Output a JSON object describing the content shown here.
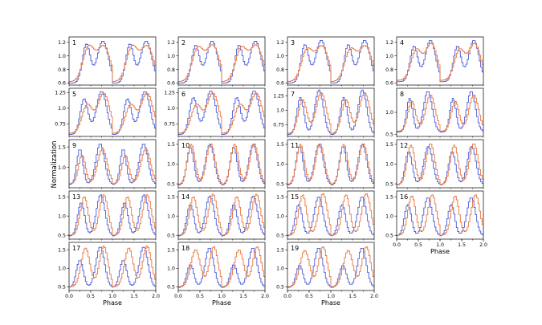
{
  "figure": {
    "ylabel": "Normalization",
    "xlabel": "Phase",
    "colors": {
      "series_a": "#4a5cd8",
      "series_b": "#e8733a",
      "axis": "#000000"
    }
  },
  "chart_data": [
    {
      "type": "line",
      "panel": "1",
      "xlim": [
        0,
        2
      ],
      "ylim": [
        0.57,
        1.28
      ],
      "yticks": [
        0.6,
        0.8,
        1.0,
        1.2
      ],
      "xticks": [],
      "series": [
        {
          "color": "#4a5cd8",
          "peaks": [
            [
              0.4,
              1.17,
              0.09
            ],
            [
              0.78,
              1.22,
              0.13
            ]
          ],
          "base": 0.6
        },
        {
          "color": "#e8733a",
          "peaks": [
            [
              0.45,
              1.12,
              0.13
            ],
            [
              0.8,
              1.14,
              0.15
            ]
          ],
          "base": 0.62
        }
      ]
    },
    {
      "type": "line",
      "panel": "2",
      "xlim": [
        0,
        2
      ],
      "ylim": [
        0.57,
        1.28
      ],
      "yticks": [
        0.6,
        0.8,
        1.0,
        1.2
      ],
      "xticks": [],
      "series": [
        {
          "color": "#4a5cd8",
          "peaks": [
            [
              0.4,
              1.15,
              0.09
            ],
            [
              0.78,
              1.22,
              0.13
            ]
          ],
          "base": 0.6
        },
        {
          "color": "#e8733a",
          "peaks": [
            [
              0.45,
              1.1,
              0.13
            ],
            [
              0.8,
              1.15,
              0.15
            ]
          ],
          "base": 0.62
        }
      ]
    },
    {
      "type": "line",
      "panel": "3",
      "xlim": [
        0,
        2
      ],
      "ylim": [
        0.57,
        1.28
      ],
      "yticks": [
        0.6,
        0.8,
        1.0,
        1.2
      ],
      "xticks": [],
      "series": [
        {
          "color": "#4a5cd8",
          "peaks": [
            [
              0.4,
              1.16,
              0.09
            ],
            [
              0.78,
              1.23,
              0.13
            ]
          ],
          "base": 0.6
        },
        {
          "color": "#e8733a",
          "peaks": [
            [
              0.45,
              1.08,
              0.13
            ],
            [
              0.8,
              1.14,
              0.15
            ]
          ],
          "base": 0.62
        }
      ]
    },
    {
      "type": "line",
      "panel": "4",
      "xlim": [
        0,
        2
      ],
      "ylim": [
        0.57,
        1.28
      ],
      "yticks": [
        0.6,
        0.8,
        1.0,
        1.2
      ],
      "xticks": [],
      "series": [
        {
          "color": "#4a5cd8",
          "peaks": [
            [
              0.4,
              1.14,
              0.09
            ],
            [
              0.78,
              1.23,
              0.12
            ]
          ],
          "base": 0.62
        },
        {
          "color": "#e8733a",
          "peaks": [
            [
              0.45,
              1.08,
              0.12
            ],
            [
              0.8,
              1.18,
              0.14
            ]
          ],
          "base": 0.64
        }
      ]
    },
    {
      "type": "line",
      "panel": "5",
      "xlim": [
        0,
        2
      ],
      "ylim": [
        0.55,
        1.32
      ],
      "yticks": [
        0.75,
        1.0,
        1.25
      ],
      "xticks": [],
      "series": [
        {
          "color": "#4a5cd8",
          "peaks": [
            [
              0.35,
              1.15,
              0.09
            ],
            [
              0.75,
              1.27,
              0.12
            ]
          ],
          "base": 0.58
        },
        {
          "color": "#e8733a",
          "peaks": [
            [
              0.42,
              1.05,
              0.12
            ],
            [
              0.8,
              1.24,
              0.14
            ]
          ],
          "base": 0.6
        }
      ]
    },
    {
      "type": "line",
      "panel": "6",
      "xlim": [
        0,
        2
      ],
      "ylim": [
        0.55,
        1.32
      ],
      "yticks": [
        0.75,
        1.0,
        1.25
      ],
      "xticks": [],
      "series": [
        {
          "color": "#4a5cd8",
          "peaks": [
            [
              0.35,
              1.17,
              0.09
            ],
            [
              0.75,
              1.28,
              0.12
            ]
          ],
          "base": 0.58
        },
        {
          "color": "#e8733a",
          "peaks": [
            [
              0.42,
              1.05,
              0.12
            ],
            [
              0.8,
              1.24,
              0.14
            ]
          ],
          "base": 0.6
        }
      ]
    },
    {
      "type": "line",
      "panel": "7",
      "xlim": [
        0,
        2
      ],
      "ylim": [
        0.55,
        1.38
      ],
      "yticks": [
        0.75,
        1.0,
        1.25
      ],
      "xticks": [],
      "series": [
        {
          "color": "#4a5cd8",
          "peaks": [
            [
              0.3,
              1.22,
              0.08
            ],
            [
              0.73,
              1.35,
              0.1
            ]
          ],
          "base": 0.58
        },
        {
          "color": "#e8733a",
          "peaks": [
            [
              0.35,
              1.18,
              0.1
            ],
            [
              0.78,
              1.3,
              0.12
            ]
          ],
          "base": 0.6
        }
      ]
    },
    {
      "type": "line",
      "panel": "8",
      "xlim": [
        0,
        2
      ],
      "ylim": [
        0.45,
        1.55
      ],
      "yticks": [
        0.5,
        1.0
      ],
      "xticks": [],
      "series": [
        {
          "color": "#4a5cd8",
          "peaks": [
            [
              0.3,
              1.32,
              0.07
            ],
            [
              0.72,
              1.48,
              0.1
            ]
          ],
          "base": 0.55
        },
        {
          "color": "#e8733a",
          "peaks": [
            [
              0.35,
              1.25,
              0.09
            ],
            [
              0.78,
              1.4,
              0.11
            ]
          ],
          "base": 0.57
        }
      ]
    },
    {
      "type": "line",
      "panel": "9",
      "xlim": [
        0,
        2
      ],
      "ylim": [
        0.5,
        1.68
      ],
      "yticks": [
        1.0,
        1.5
      ],
      "xticks": [],
      "series": [
        {
          "color": "#4a5cd8",
          "peaks": [
            [
              0.25,
              1.45,
              0.07
            ],
            [
              0.72,
              1.58,
              0.1
            ]
          ],
          "base": 0.58
        },
        {
          "color": "#e8733a",
          "peaks": [
            [
              0.3,
              1.3,
              0.08
            ],
            [
              0.77,
              1.45,
              0.11
            ]
          ],
          "base": 0.6
        }
      ]
    },
    {
      "type": "line",
      "panel": "10",
      "xlim": [
        0,
        2
      ],
      "ylim": [
        0.4,
        1.62
      ],
      "yticks": [
        0.5,
        1.0,
        1.5
      ],
      "xticks": [],
      "series": [
        {
          "color": "#4a5cd8",
          "peaks": [
            [
              0.28,
              1.43,
              0.08
            ],
            [
              0.73,
              1.5,
              0.1
            ]
          ],
          "base": 0.47
        },
        {
          "color": "#e8733a",
          "peaks": [
            [
              0.3,
              1.5,
              0.09
            ],
            [
              0.75,
              1.52,
              0.1
            ]
          ],
          "base": 0.48
        }
      ]
    },
    {
      "type": "line",
      "panel": "11",
      "xlim": [
        0,
        2
      ],
      "ylim": [
        0.4,
        1.62
      ],
      "yticks": [
        0.5,
        1.0,
        1.5
      ],
      "xticks": [],
      "series": [
        {
          "color": "#4a5cd8",
          "peaks": [
            [
              0.28,
              1.45,
              0.08
            ],
            [
              0.73,
              1.5,
              0.1
            ]
          ],
          "base": 0.47
        },
        {
          "color": "#e8733a",
          "peaks": [
            [
              0.3,
              1.5,
              0.09
            ],
            [
              0.75,
              1.52,
              0.1
            ]
          ],
          "base": 0.48
        }
      ]
    },
    {
      "type": "line",
      "panel": "12",
      "xlim": [
        0,
        2
      ],
      "ylim": [
        0.4,
        1.62
      ],
      "yticks": [
        0.5,
        1.0,
        1.5
      ],
      "xticks": [],
      "series": [
        {
          "color": "#4a5cd8",
          "peaks": [
            [
              0.28,
              1.32,
              0.08
            ],
            [
              0.73,
              1.45,
              0.1
            ]
          ],
          "base": 0.47
        },
        {
          "color": "#e8733a",
          "peaks": [
            [
              0.33,
              1.48,
              0.09
            ],
            [
              0.78,
              1.52,
              0.1
            ]
          ],
          "base": 0.48
        }
      ]
    },
    {
      "type": "line",
      "panel": "13",
      "xlim": [
        0,
        2
      ],
      "ylim": [
        0.4,
        1.65
      ],
      "yticks": [
        0.5,
        1.0,
        1.5
      ],
      "xticks": [],
      "series": [
        {
          "color": "#4a5cd8",
          "peaks": [
            [
              0.28,
              1.35,
              0.08
            ],
            [
              0.73,
              1.55,
              0.1
            ]
          ],
          "base": 0.48
        },
        {
          "color": "#e8733a",
          "peaks": [
            [
              0.35,
              1.5,
              0.09
            ],
            [
              0.8,
              1.55,
              0.1
            ]
          ],
          "base": 0.5
        }
      ]
    },
    {
      "type": "line",
      "panel": "14",
      "xlim": [
        0,
        2
      ],
      "ylim": [
        0.4,
        1.65
      ],
      "yticks": [
        0.5,
        1.0,
        1.5
      ],
      "xticks": [],
      "series": [
        {
          "color": "#4a5cd8",
          "peaks": [
            [
              0.28,
              1.3,
              0.08
            ],
            [
              0.73,
              1.52,
              0.1
            ]
          ],
          "base": 0.48
        },
        {
          "color": "#e8733a",
          "peaks": [
            [
              0.35,
              1.5,
              0.09
            ],
            [
              0.8,
              1.57,
              0.1
            ]
          ],
          "base": 0.5
        }
      ]
    },
    {
      "type": "line",
      "panel": "15",
      "xlim": [
        0,
        2
      ],
      "ylim": [
        0.4,
        1.65
      ],
      "yticks": [
        0.5,
        1.0,
        1.5
      ],
      "xticks": [],
      "series": [
        {
          "color": "#4a5cd8",
          "peaks": [
            [
              0.26,
              1.3,
              0.08
            ],
            [
              0.72,
              1.5,
              0.1
            ]
          ],
          "base": 0.48
        },
        {
          "color": "#e8733a",
          "peaks": [
            [
              0.35,
              1.55,
              0.09
            ],
            [
              0.82,
              1.58,
              0.1
            ]
          ],
          "base": 0.5
        }
      ]
    },
    {
      "type": "line",
      "panel": "16",
      "xlim": [
        0,
        2
      ],
      "ylim": [
        0.4,
        1.65
      ],
      "yticks": [
        0.5,
        1.0,
        1.5
      ],
      "xticks": [
        0.0,
        0.5,
        1.0,
        1.5,
        2.0
      ],
      "xlabel": "Phase",
      "series": [
        {
          "color": "#4a5cd8",
          "peaks": [
            [
              0.26,
              1.3,
              0.08
            ],
            [
              0.72,
              1.48,
              0.1
            ]
          ],
          "base": 0.48
        },
        {
          "color": "#e8733a",
          "peaks": [
            [
              0.35,
              1.52,
              0.09
            ],
            [
              0.82,
              1.55,
              0.1
            ]
          ],
          "base": 0.5
        }
      ]
    },
    {
      "type": "line",
      "panel": "17",
      "xlim": [
        0,
        2
      ],
      "ylim": [
        0.4,
        1.7
      ],
      "yticks": [
        0.5,
        1.0,
        1.5
      ],
      "xticks": [
        0.0,
        0.5,
        1.0,
        1.5,
        2.0
      ],
      "xlabel": "Phase",
      "series": [
        {
          "color": "#4a5cd8",
          "peaks": [
            [
              0.25,
              1.22,
              0.08
            ],
            [
              0.72,
              1.58,
              0.1
            ]
          ],
          "base": 0.48
        },
        {
          "color": "#e8733a",
          "peaks": [
            [
              0.38,
              1.55,
              0.1
            ],
            [
              0.8,
              1.6,
              0.1
            ]
          ],
          "base": 0.5
        }
      ]
    },
    {
      "type": "line",
      "panel": "18",
      "xlim": [
        0,
        2
      ],
      "ylim": [
        0.4,
        1.7
      ],
      "yticks": [
        0.5,
        1.0,
        1.5
      ],
      "xticks": [
        0.0,
        0.5,
        1.0,
        1.5,
        2.0
      ],
      "xlabel": "Phase",
      "series": [
        {
          "color": "#4a5cd8",
          "peaks": [
            [
              0.28,
              1.1,
              0.08
            ],
            [
              0.72,
              1.55,
              0.1
            ]
          ],
          "base": 0.48
        },
        {
          "color": "#e8733a",
          "peaks": [
            [
              0.4,
              1.5,
              0.11
            ],
            [
              0.82,
              1.58,
              0.1
            ]
          ],
          "base": 0.5
        }
      ]
    },
    {
      "type": "line",
      "panel": "19",
      "xlim": [
        0,
        2
      ],
      "ylim": [
        0.4,
        1.7
      ],
      "yticks": [
        0.5,
        1.0,
        1.5
      ],
      "xticks": [
        0.0,
        0.5,
        1.0,
        1.5,
        2.0
      ],
      "xlabel": "Phase",
      "series": [
        {
          "color": "#4a5cd8",
          "peaks": [
            [
              0.28,
              1.08,
              0.08
            ],
            [
              0.72,
              1.55,
              0.1
            ]
          ],
          "base": 0.48
        },
        {
          "color": "#e8733a",
          "peaks": [
            [
              0.4,
              1.48,
              0.11
            ],
            [
              0.82,
              1.58,
              0.1
            ]
          ],
          "base": 0.5
        }
      ]
    }
  ]
}
